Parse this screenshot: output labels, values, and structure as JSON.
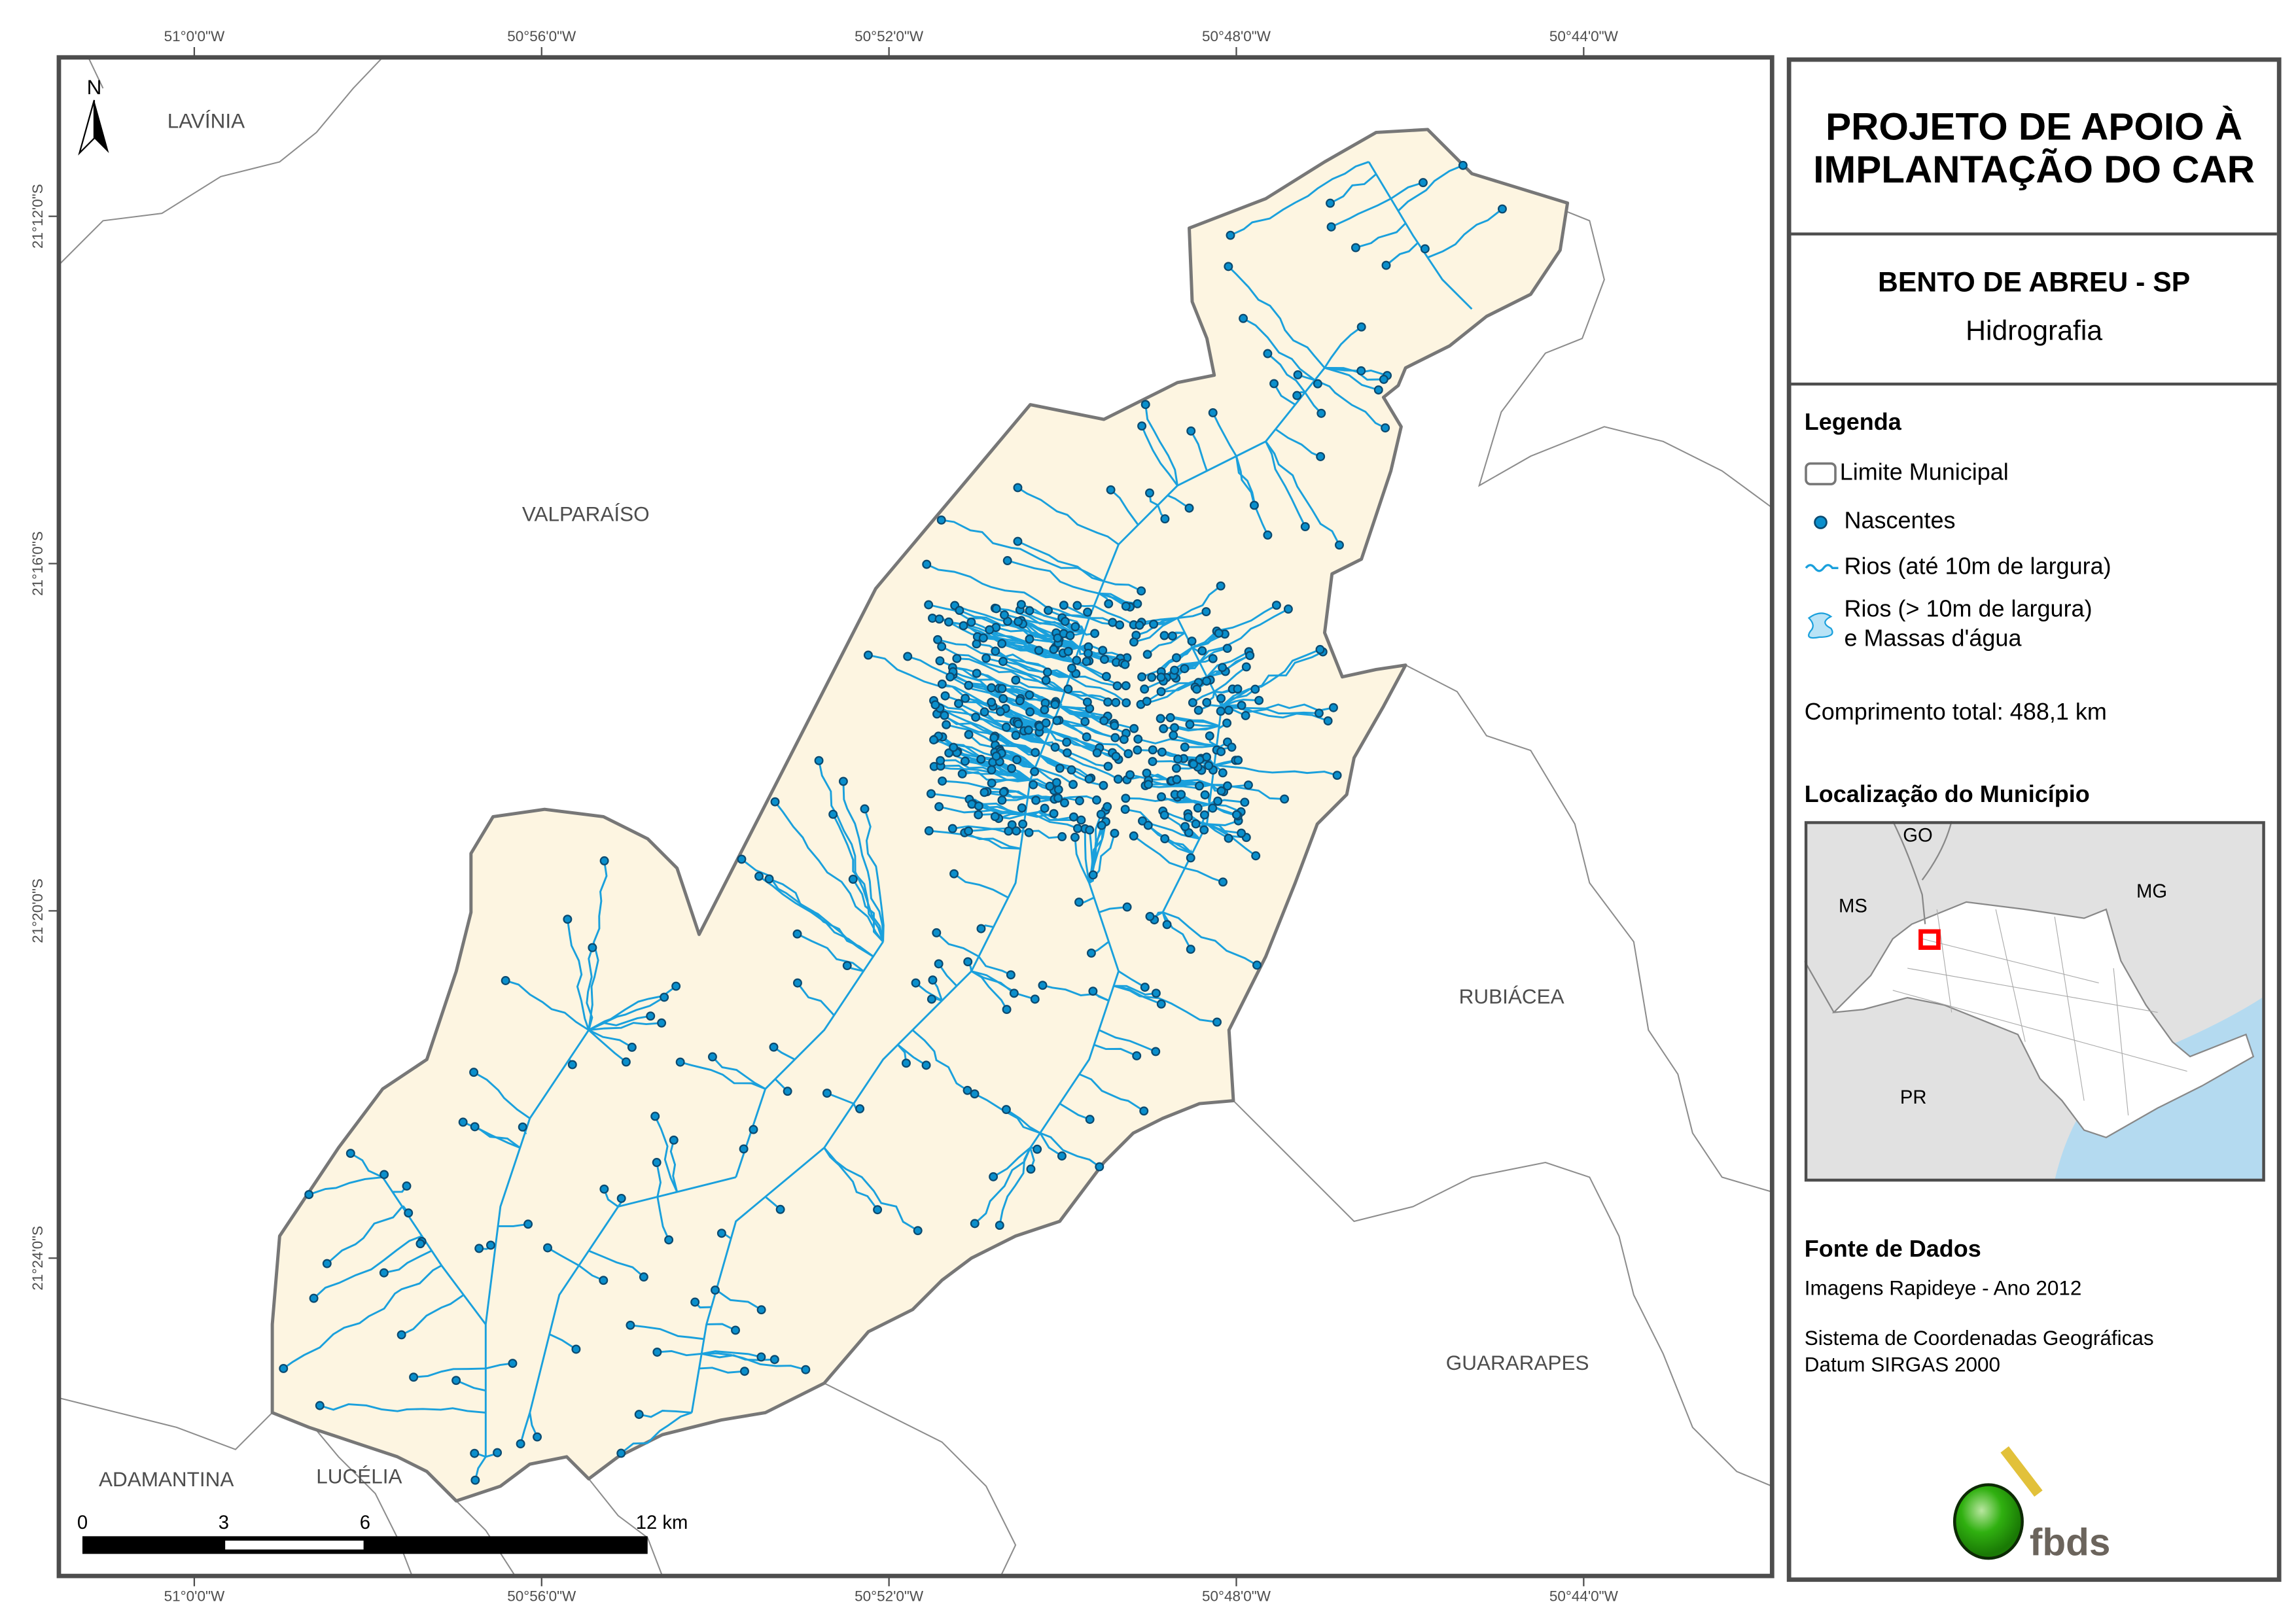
{
  "map": {
    "north_label": "N",
    "neighbors": [
      "LAVÍNIA",
      "VALPARAÍSO",
      "RUBIÁCEA",
      "GUARARAPES",
      "ADAMANTINA",
      "LUCÉLIA"
    ],
    "longitude_ticks": [
      "51°0'0\"W",
      "50°56'0\"W",
      "50°52'0\"W",
      "50°48'0\"W",
      "50°44'0\"W"
    ],
    "latitude_ticks": [
      "21°12'0\"S",
      "21°16'0\"S",
      "21°20'0\"S",
      "21°24'0\"S"
    ],
    "scale_bar": {
      "labels": [
        "0",
        "3",
        "6",
        "12 km"
      ]
    },
    "colors": {
      "municipality_fill": "#fdf5e1",
      "boundary": "#777777",
      "river": "#1aa0dc",
      "spring": "#0a8fcc",
      "spring_outline": "#0b4a70"
    }
  },
  "panel": {
    "title": "PROJETO DE APOIO À IMPLANTAÇÃO DO CAR",
    "municipality": "BENTO DE ABREU - SP",
    "theme": "Hidrografia",
    "legend": {
      "heading": "Legenda",
      "items": [
        {
          "icon": "boundary-box-icon",
          "label": "Limite Municipal"
        },
        {
          "icon": "spring-dot-icon",
          "label": "Nascentes"
        },
        {
          "icon": "river-line-icon",
          "label": "Rios (até 10m de largura)"
        },
        {
          "icon": "water-body-icon",
          "label": "Rios (> 10m de largura)",
          "label2": "e Massas d'água"
        }
      ],
      "total_length": "Comprimento total:  488,1 km"
    },
    "location": {
      "heading": "Localização do Município",
      "states": [
        "GO",
        "MS",
        "MG",
        "PR"
      ],
      "colors": {
        "state": "#e1e1e1",
        "sp": "#ffffff",
        "sea": "#b4daf0",
        "highlight": "#ff0000"
      }
    },
    "source": {
      "heading": "Fonte de Dados",
      "line1": "Imagens Rapideye - Ano 2012",
      "line2": "Sistema de Coordenadas Geográficas",
      "line3": "Datum SIRGAS 2000"
    },
    "logo_text": "fbds"
  }
}
